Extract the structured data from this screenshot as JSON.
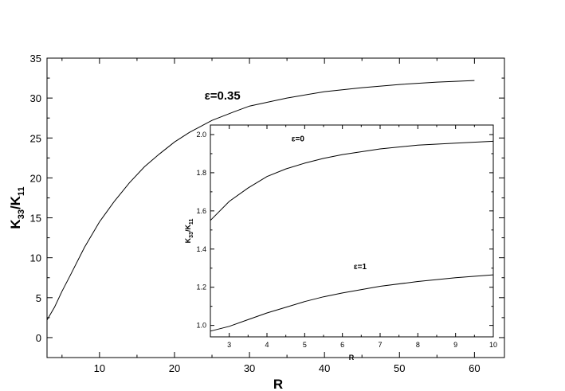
{
  "chart_data": [
    {
      "type": "line",
      "xlabel": "R",
      "ylabel_main": "K",
      "ylabel_sub1": "33",
      "ylabel_sep": "/K",
      "ylabel_sub2": "11",
      "xlim": [
        3,
        64
      ],
      "ylim": [
        -2.5,
        35
      ],
      "xticks": [
        10,
        20,
        30,
        40,
        50,
        60
      ],
      "yticks": [
        0,
        5,
        10,
        15,
        20,
        25,
        30,
        35
      ],
      "grid": false,
      "series": [
        {
          "name": "ε=0.35",
          "x": [
            3,
            4,
            5,
            6,
            8,
            10,
            12,
            14,
            16,
            18,
            20,
            22,
            25,
            28,
            30,
            35,
            40,
            45,
            50,
            55,
            60
          ],
          "y": [
            2.2,
            3.8,
            5.8,
            7.6,
            11.3,
            14.5,
            17.1,
            19.4,
            21.4,
            23.0,
            24.5,
            25.7,
            27.2,
            28.3,
            29.0,
            30.0,
            30.8,
            31.3,
            31.7,
            32.0,
            32.2
          ]
        }
      ],
      "annotations": [
        {
          "text": "ε=0.35",
          "x": 24,
          "y": 29.8
        }
      ]
    },
    {
      "type": "line",
      "xlabel": "R",
      "ylabel_main": "K",
      "ylabel_sub1": "33",
      "ylabel_sep": "/K",
      "ylabel_sub2": "11",
      "xlim": [
        2.5,
        10
      ],
      "ylim": [
        0.94,
        2.05
      ],
      "xticks": [
        3,
        4,
        5,
        6,
        7,
        8,
        9,
        10
      ],
      "xticks_labels": [
        "3",
        "4",
        "5",
        "6",
        "7",
        "8",
        "9",
        "10"
      ],
      "yticks": [
        1.0,
        1.2,
        1.4,
        1.6,
        1.8,
        2.0
      ],
      "yticks_labels": [
        "1.0",
        "1.2",
        "1.4",
        "1.6",
        "1.8",
        "2.0"
      ],
      "grid": false,
      "series": [
        {
          "name": "ε=0",
          "x": [
            2.5,
            3.0,
            3.5,
            4.0,
            4.5,
            5.0,
            5.5,
            6.0,
            7.0,
            8.0,
            9.0,
            10.0
          ],
          "y": [
            1.55,
            1.65,
            1.72,
            1.78,
            1.82,
            1.85,
            1.875,
            1.895,
            1.925,
            1.945,
            1.955,
            1.965
          ]
        },
        {
          "name": "ε=1",
          "x": [
            2.5,
            3.0,
            3.5,
            4.0,
            4.5,
            5.0,
            5.5,
            6.0,
            7.0,
            8.0,
            9.0,
            10.0
          ],
          "y": [
            0.97,
            0.995,
            1.03,
            1.065,
            1.095,
            1.125,
            1.15,
            1.17,
            1.205,
            1.23,
            1.25,
            1.265
          ]
        }
      ],
      "annotations": [
        {
          "text": "ε=0",
          "x": 4.65,
          "y": 1.965
        },
        {
          "text": "ε=1",
          "x": 6.3,
          "y": 1.295
        }
      ]
    }
  ]
}
